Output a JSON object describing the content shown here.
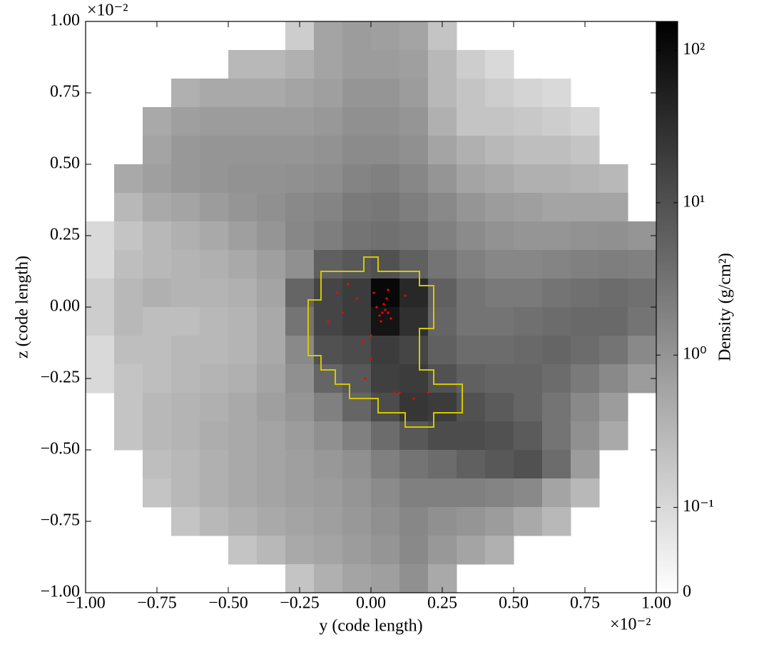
{
  "chart_data": {
    "type": "heatmap",
    "x_label": "y  (code length)",
    "y_label": "z  (code length)",
    "x_offset_label": "×10⁻²",
    "y_offset_label": "×10⁻²",
    "colorbar_label": "Density  (g/cm²)",
    "xlim": [
      -1,
      1
    ],
    "ylim": [
      -1,
      1
    ],
    "xticks": [
      {
        "value": -1,
        "label": "−1.00"
      },
      {
        "value": -0.75,
        "label": "−0.75"
      },
      {
        "value": -0.5,
        "label": "−0.50"
      },
      {
        "value": -0.25,
        "label": "−0.25"
      },
      {
        "value": 0,
        "label": "0.00"
      },
      {
        "value": 0.25,
        "label": "0.25"
      },
      {
        "value": 0.5,
        "label": "0.50"
      },
      {
        "value": 0.75,
        "label": "0.75"
      },
      {
        "value": 1,
        "label": "1.00"
      }
    ],
    "yticks": [
      {
        "value": -1,
        "label": "−1.00"
      },
      {
        "value": -0.75,
        "label": "−0.75"
      },
      {
        "value": -0.5,
        "label": "−0.50"
      },
      {
        "value": -0.25,
        "label": "−0.25"
      },
      {
        "value": 0,
        "label": "0.00"
      },
      {
        "value": 0.25,
        "label": "0.25"
      },
      {
        "value": 0.5,
        "label": "0.50"
      },
      {
        "value": 0.75,
        "label": "0.75"
      },
      {
        "value": 1,
        "label": "1.00"
      }
    ],
    "color_scale": "symlog",
    "linthresh": 0.1,
    "clim": [
      0,
      155
    ],
    "cticks": [
      0,
      {
        "value": 0.1,
        "label": "10⁻¹"
      },
      {
        "value": 1,
        "label": "10⁰"
      },
      {
        "value": 10,
        "label": "10¹"
      },
      {
        "value": 100,
        "label": "10²"
      }
    ],
    "x": [
      -0.95,
      -0.85,
      -0.75,
      -0.65,
      -0.55,
      -0.45,
      -0.35,
      -0.25,
      -0.15,
      -0.05,
      0.05,
      0.15,
      0.25,
      0.35,
      0.45,
      0.55,
      0.65,
      0.75,
      0.85,
      0.95
    ],
    "y": [
      0.95,
      0.85,
      0.75,
      0.65,
      0.55,
      0.45,
      0.35,
      0.25,
      0.15,
      0.05,
      -0.05,
      -0.15,
      -0.25,
      -0.35,
      -0.45,
      -0.55,
      -0.65,
      -0.75,
      -0.85,
      -0.95
    ],
    "values": [
      [
        null,
        null,
        null,
        null,
        null,
        null,
        null,
        0.15,
        0.6,
        0.8,
        0.7,
        0.6,
        0.2,
        null,
        null,
        null,
        null,
        null,
        null,
        null
      ],
      [
        null,
        null,
        null,
        null,
        null,
        0.3,
        0.3,
        0.4,
        0.6,
        0.8,
        0.8,
        0.7,
        0.3,
        0.15,
        0.1,
        null,
        null,
        null,
        null,
        null
      ],
      [
        null,
        null,
        null,
        0.4,
        0.5,
        0.5,
        0.5,
        0.6,
        0.7,
        1.0,
        1.0,
        0.8,
        0.3,
        0.2,
        0.15,
        0.12,
        0.1,
        null,
        null,
        null
      ],
      [
        null,
        null,
        0.5,
        0.7,
        0.8,
        0.8,
        0.8,
        0.8,
        0.9,
        1.2,
        1.2,
        1.0,
        0.4,
        0.2,
        0.2,
        0.18,
        0.15,
        0.12,
        null,
        null
      ],
      [
        null,
        null,
        0.6,
        0.9,
        1.0,
        1.0,
        1.0,
        1.0,
        1.1,
        1.4,
        1.4,
        1.2,
        0.6,
        0.4,
        0.3,
        0.25,
        0.25,
        0.2,
        null,
        null
      ],
      [
        null,
        0.5,
        0.7,
        0.9,
        1.0,
        1.1,
        1.1,
        1.2,
        1.3,
        1.8,
        2.0,
        1.6,
        1.0,
        0.6,
        0.5,
        0.4,
        0.4,
        0.35,
        0.3,
        null
      ],
      [
        null,
        0.3,
        0.5,
        0.6,
        0.8,
        1.0,
        1.2,
        1.5,
        1.8,
        2.5,
        2.8,
        2.2,
        1.5,
        1.0,
        0.8,
        0.7,
        0.6,
        0.6,
        0.6,
        null
      ],
      [
        0.1,
        0.2,
        0.3,
        0.4,
        0.5,
        0.7,
        1.0,
        1.6,
        2.2,
        3,
        3.5,
        3,
        2,
        1.4,
        1.1,
        1.0,
        1.0,
        1.1,
        1.2,
        1.0
      ],
      [
        0.1,
        0.25,
        0.3,
        0.35,
        0.4,
        0.5,
        0.7,
        1.2,
        6,
        8,
        10,
        6,
        3,
        2,
        1.6,
        1.6,
        1.8,
        2,
        2.2,
        2
      ],
      [
        0.15,
        0.3,
        0.4,
        0.35,
        0.35,
        0.4,
        0.6,
        5,
        15,
        20,
        120,
        40,
        6,
        3,
        2.5,
        2.5,
        3,
        3.5,
        4,
        3.5
      ],
      [
        0.15,
        0.3,
        0.25,
        0.25,
        0.3,
        0.35,
        0.5,
        3,
        15,
        20,
        80,
        30,
        5,
        3,
        3,
        3.5,
        4,
        4.5,
        4.5,
        3
      ],
      [
        0.1,
        0.25,
        0.25,
        0.3,
        0.3,
        0.35,
        0.5,
        1.5,
        10,
        12,
        20,
        15,
        6,
        4,
        4,
        4.5,
        5,
        4,
        3,
        1.5
      ],
      [
        0.1,
        0.2,
        0.25,
        0.3,
        0.35,
        0.4,
        0.6,
        1.2,
        5,
        8,
        18,
        20,
        10,
        6,
        5,
        5,
        4,
        2.5,
        1.5,
        0.8
      ],
      [
        null,
        0.2,
        0.3,
        0.35,
        0.4,
        0.5,
        0.7,
        1.0,
        2,
        5,
        12,
        25,
        20,
        10,
        7,
        5,
        3,
        1.5,
        0.8,
        null
      ],
      [
        null,
        0.2,
        0.3,
        0.35,
        0.45,
        0.5,
        0.6,
        0.8,
        1.2,
        2,
        4,
        8,
        12,
        12,
        10,
        7,
        3,
        1.2,
        0.5,
        null
      ],
      [
        null,
        null,
        0.25,
        0.3,
        0.4,
        0.5,
        0.6,
        0.7,
        0.9,
        1.2,
        2,
        3,
        4,
        6,
        8,
        10,
        4,
        0.8,
        null,
        null
      ],
      [
        null,
        null,
        0.2,
        0.3,
        0.4,
        0.5,
        0.6,
        0.7,
        0.8,
        1.0,
        1.4,
        2,
        2,
        2,
        1.8,
        1.5,
        0.6,
        0.3,
        null,
        null
      ],
      [
        null,
        null,
        null,
        0.2,
        0.3,
        0.4,
        0.5,
        0.6,
        0.7,
        0.9,
        1.2,
        1.6,
        1.2,
        1.0,
        0.8,
        0.5,
        0.3,
        null,
        null,
        null
      ],
      [
        null,
        null,
        null,
        null,
        null,
        0.2,
        0.3,
        0.5,
        0.6,
        0.8,
        1.0,
        1.5,
        0.9,
        0.6,
        0.4,
        null,
        null,
        null,
        null,
        null
      ],
      [
        null,
        null,
        null,
        null,
        null,
        null,
        null,
        0.2,
        0.4,
        0.6,
        0.7,
        1.2,
        0.5,
        null,
        null,
        null,
        null,
        null,
        null,
        null
      ]
    ],
    "contour": {
      "color": "#d4c800",
      "x": [
        -0.025,
        0.025,
        0.025,
        0.17,
        0.17,
        0.22,
        0.22,
        0.17,
        0.17,
        0.22,
        0.22,
        0.32,
        0.32,
        0.22,
        0.22,
        0.12,
        0.12,
        0.025,
        0.025,
        -0.075,
        -0.075,
        -0.125,
        -0.125,
        -0.175,
        -0.175,
        -0.22,
        -0.22,
        -0.175,
        -0.175,
        -0.025
      ],
      "y": [
        0.175,
        0.175,
        0.125,
        0.125,
        0.075,
        0.075,
        -0.075,
        -0.075,
        -0.22,
        -0.22,
        -0.27,
        -0.27,
        -0.37,
        -0.37,
        -0.42,
        -0.42,
        -0.37,
        -0.37,
        -0.32,
        -0.32,
        -0.27,
        -0.27,
        -0.22,
        -0.22,
        -0.17,
        -0.17,
        0.025,
        0.025,
        0.125,
        0.125
      ]
    },
    "particles": {
      "color": "#ff0000",
      "x": [
        0.04,
        0.05,
        0.03,
        0.06,
        0.02,
        0.07,
        0.045,
        0.035,
        0.055,
        0.01,
        -0.05,
        -0.1,
        -0.12,
        -0.03,
        -0.02,
        0.0,
        0.08,
        0.1,
        0.15,
        0.2,
        -0.15,
        0.06,
        0.12,
        -0.08,
        0.0
      ],
      "y": [
        -0.02,
        -0.01,
        -0.03,
        -0.02,
        0.0,
        -0.04,
        0.01,
        -0.05,
        0.03,
        0.05,
        0.03,
        -0.02,
        0.05,
        -0.12,
        -0.25,
        -0.18,
        -0.3,
        -0.3,
        -0.32,
        -0.3,
        -0.05,
        0.06,
        0.04,
        0.08,
        -0.1
      ]
    }
  }
}
